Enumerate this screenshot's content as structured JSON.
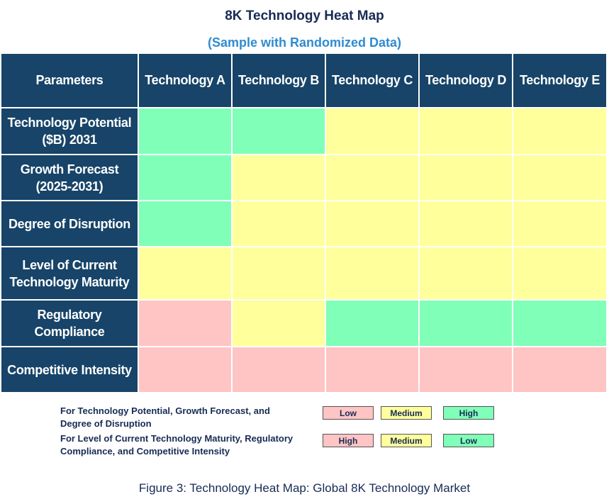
{
  "header": {
    "title": "8K Technology Heat Map",
    "subtitle": "(Sample with Randomized Data)"
  },
  "table": {
    "header_color": "#174468",
    "columns": [
      "Parameters",
      "Technology A",
      "Technology B",
      "Technology C",
      "Technology D",
      "Technology E"
    ],
    "rows": [
      {
        "label": "Technology Potential ($B) 2031",
        "colors": [
          "#80ffb8",
          "#80ffb8",
          "#ffff9c",
          "#ffff9c",
          "#ffff9c"
        ]
      },
      {
        "label": "Growth Forecast (2025-2031)",
        "colors": [
          "#80ffb8",
          "#ffff9c",
          "#ffff9c",
          "#ffff9c",
          "#ffff9c"
        ]
      },
      {
        "label": "Degree of Disruption",
        "colors": [
          "#80ffb8",
          "#ffff9c",
          "#ffff9c",
          "#ffff9c",
          "#ffff9c"
        ]
      },
      {
        "label": "Level of Current Technology Maturity",
        "colors": [
          "#ffff9c",
          "#ffff9c",
          "#ffff9c",
          "#ffff9c",
          "#ffff9c"
        ]
      },
      {
        "label": "Regulatory Compliance",
        "colors": [
          "#ffc4c4",
          "#ffff9c",
          "#80ffb8",
          "#80ffb8",
          "#80ffb8"
        ]
      },
      {
        "label": "Competitive Intensity",
        "colors": [
          "#ffc4c4",
          "#ffc4c4",
          "#ffc4c4",
          "#ffc4c4",
          "#ffc4c4"
        ]
      }
    ]
  },
  "legend": [
    {
      "text": "For Technology Potential, Growth Forecast, and Degree of Disruption",
      "items": [
        {
          "label": "Low",
          "color": "#ffc4c4"
        },
        {
          "label": "Medium",
          "color": "#ffff9c"
        },
        {
          "label": "High",
          "color": "#80ffb8"
        }
      ]
    },
    {
      "text": "For Level of Current Technology Maturity, Regulatory Compliance, and Competitive Intensity",
      "items": [
        {
          "label": "High",
          "color": "#ffc4c4"
        },
        {
          "label": "Medium",
          "color": "#ffff9c"
        },
        {
          "label": "Low",
          "color": "#80ffb8"
        }
      ]
    }
  ],
  "caption": "Figure 3: Technology Heat Map: Global 8K Technology Market"
}
